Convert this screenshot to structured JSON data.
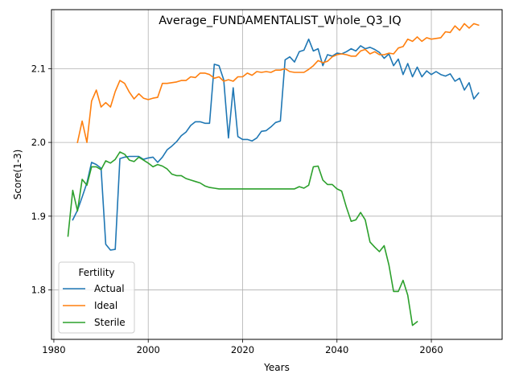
{
  "chart_data": {
    "type": "line",
    "title": "Average_FUNDAMENTALIST_Whole_Q3_IQ",
    "xlabel": "Years",
    "ylabel": "Score(1-3)",
    "xlim": [
      1979.5,
      2075
    ],
    "ylim": [
      1.733,
      2.18
    ],
    "xticks": [
      1980,
      2000,
      2020,
      2040,
      2060
    ],
    "yticks": [
      1.8,
      1.9,
      2.0,
      2.1
    ],
    "xtick_labels": [
      "1980",
      "2000",
      "2020",
      "2040",
      "2060"
    ],
    "ytick_labels": [
      "1.8",
      "1.9",
      "2.0",
      "2.1"
    ],
    "grid": true,
    "legend": {
      "title": "Fertility",
      "placement": "lower-left"
    },
    "series": [
      {
        "name": "Actual",
        "color": "#1f77b4",
        "x": [
          1984,
          1985,
          1986,
          1987,
          1988,
          1989,
          1990,
          1991,
          1992,
          1993,
          1994,
          1995,
          1996,
          1997,
          1998,
          1999,
          2000,
          2001,
          2002,
          2003,
          2004,
          2005,
          2006,
          2007,
          2008,
          2009,
          2010,
          2011,
          2012,
          2013,
          2014,
          2015,
          2016,
          2017,
          2018,
          2019,
          2020,
          2021,
          2022,
          2023,
          2024,
          2025,
          2026,
          2027,
          2028,
          2029,
          2030,
          2031,
          2032,
          2033,
          2034,
          2035,
          2036,
          2037,
          2038,
          2039,
          2040,
          2041,
          2042,
          2043,
          2044,
          2045,
          2046,
          2047,
          2048,
          2049,
          2050,
          2051,
          2052,
          2053,
          2054,
          2055,
          2056,
          2057,
          2058,
          2059,
          2060,
          2061,
          2062,
          2063,
          2064,
          2065,
          2066,
          2067,
          2068,
          2069,
          2070
        ],
        "values": [
          1.895,
          1.908,
          1.926,
          1.945,
          1.973,
          1.97,
          1.965,
          1.862,
          1.854,
          1.855,
          1.978,
          1.98,
          1.981,
          1.981,
          1.981,
          1.977,
          1.979,
          1.98,
          1.973,
          1.98,
          1.99,
          1.995,
          2.001,
          2.009,
          2.014,
          2.023,
          2.028,
          2.028,
          2.026,
          2.026,
          2.106,
          2.104,
          2.085,
          2.006,
          2.074,
          2.008,
          2.004,
          2.004,
          2.002,
          2.006,
          2.015,
          2.016,
          2.021,
          2.027,
          2.029,
          2.112,
          2.116,
          2.109,
          2.123,
          2.125,
          2.14,
          2.124,
          2.127,
          2.104,
          2.119,
          2.117,
          2.121,
          2.12,
          2.123,
          2.127,
          2.124,
          2.131,
          2.127,
          2.129,
          2.126,
          2.122,
          2.114,
          2.12,
          2.104,
          2.113,
          2.092,
          2.107,
          2.089,
          2.102,
          2.089,
          2.097,
          2.092,
          2.096,
          2.092,
          2.09,
          2.093,
          2.083,
          2.087,
          2.071,
          2.081,
          2.059,
          2.067
        ]
      },
      {
        "name": "Ideal",
        "color": "#ff7f0e",
        "x": [
          1985,
          1986,
          1987,
          1988,
          1989,
          1990,
          1991,
          1992,
          1993,
          1994,
          1995,
          1996,
          1997,
          1998,
          1999,
          2000,
          2001,
          2002,
          2003,
          2004,
          2005,
          2006,
          2007,
          2008,
          2009,
          2010,
          2011,
          2012,
          2013,
          2014,
          2015,
          2016,
          2017,
          2018,
          2019,
          2020,
          2021,
          2022,
          2023,
          2024,
          2025,
          2026,
          2027,
          2028,
          2029,
          2030,
          2031,
          2032,
          2033,
          2034,
          2035,
          2036,
          2037,
          2038,
          2039,
          2040,
          2041,
          2042,
          2043,
          2044,
          2045,
          2046,
          2047,
          2048,
          2049,
          2050,
          2051,
          2052,
          2053,
          2054,
          2055,
          2056,
          2057,
          2058,
          2059,
          2060,
          2061,
          2062,
          2063,
          2064,
          2065,
          2066,
          2067,
          2068,
          2069,
          2070
        ],
        "values": [
          2.0,
          2.029,
          2.0,
          2.056,
          2.071,
          2.048,
          2.054,
          2.048,
          2.069,
          2.084,
          2.08,
          2.068,
          2.059,
          2.066,
          2.06,
          2.058,
          2.06,
          2.061,
          2.08,
          2.08,
          2.081,
          2.082,
          2.084,
          2.084,
          2.089,
          2.088,
          2.094,
          2.094,
          2.092,
          2.087,
          2.089,
          2.083,
          2.085,
          2.083,
          2.089,
          2.089,
          2.094,
          2.091,
          2.096,
          2.095,
          2.096,
          2.095,
          2.098,
          2.098,
          2.1,
          2.096,
          2.095,
          2.095,
          2.095,
          2.099,
          2.104,
          2.111,
          2.108,
          2.11,
          2.116,
          2.119,
          2.12,
          2.119,
          2.117,
          2.117,
          2.124,
          2.126,
          2.12,
          2.123,
          2.119,
          2.119,
          2.121,
          2.12,
          2.128,
          2.13,
          2.14,
          2.137,
          2.143,
          2.137,
          2.142,
          2.14,
          2.141,
          2.142,
          2.15,
          2.149,
          2.158,
          2.152,
          2.161,
          2.155,
          2.161,
          2.159
        ]
      },
      {
        "name": "Sterile",
        "color": "#2ca02c",
        "x": [
          1983,
          1984,
          1985,
          1986,
          1987,
          1988,
          1989,
          1990,
          1991,
          1992,
          1993,
          1994,
          1995,
          1996,
          1997,
          1998,
          1999,
          2000,
          2001,
          2002,
          2003,
          2004,
          2005,
          2006,
          2007,
          2008,
          2009,
          2010,
          2011,
          2012,
          2013,
          2014,
          2015,
          2016,
          2017,
          2018,
          2019,
          2020,
          2021,
          2022,
          2023,
          2024,
          2025,
          2026,
          2027,
          2028,
          2029,
          2030,
          2031,
          2032,
          2033,
          2034,
          2035,
          2036,
          2037,
          2038,
          2039,
          2040,
          2041,
          2042,
          2043,
          2044,
          2045,
          2046,
          2047,
          2048,
          2049,
          2050,
          2051,
          2052,
          2053,
          2054,
          2055,
          2056,
          2057
        ],
        "values": [
          1.873,
          1.935,
          1.907,
          1.95,
          1.942,
          1.967,
          1.967,
          1.963,
          1.975,
          1.972,
          1.977,
          1.987,
          1.984,
          1.976,
          1.974,
          1.98,
          1.976,
          1.972,
          1.967,
          1.97,
          1.968,
          1.964,
          1.957,
          1.955,
          1.955,
          1.951,
          1.949,
          1.947,
          1.945,
          1.941,
          1.939,
          1.938,
          1.937,
          1.937,
          1.937,
          1.937,
          1.937,
          1.937,
          1.937,
          1.937,
          1.937,
          1.937,
          1.937,
          1.937,
          1.937,
          1.937,
          1.937,
          1.937,
          1.937,
          1.94,
          1.938,
          1.942,
          1.967,
          1.968,
          1.949,
          1.943,
          1.943,
          1.937,
          1.934,
          1.912,
          1.893,
          1.895,
          1.905,
          1.895,
          1.865,
          1.858,
          1.852,
          1.86,
          1.834,
          1.798,
          1.798,
          1.813,
          1.793,
          1.752,
          1.757
        ]
      }
    ]
  }
}
